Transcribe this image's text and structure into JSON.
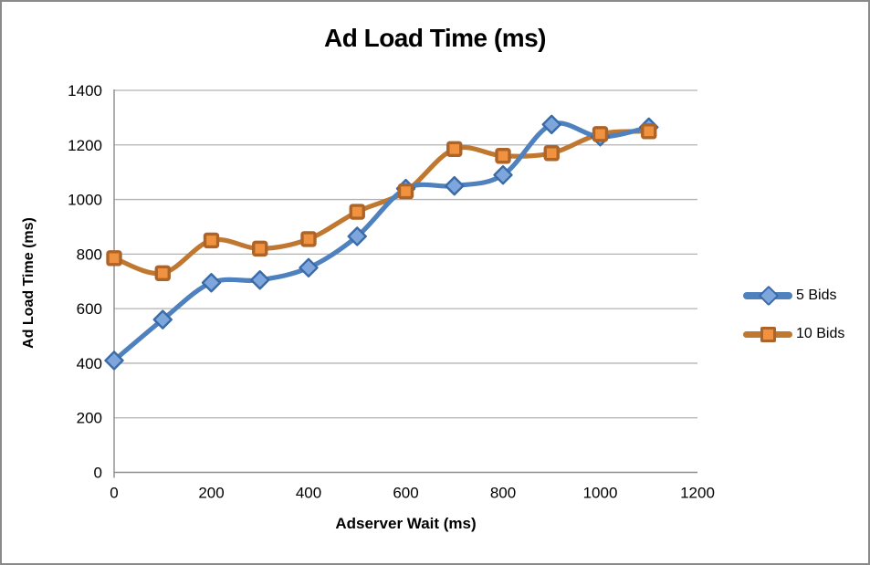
{
  "window": {
    "background": "#ffffff",
    "border_color": "#8a8a8a"
  },
  "chart_data": {
    "type": "line",
    "title": "Ad Load Time (ms)",
    "xlabel": "Adserver Wait (ms)",
    "ylabel": "Ad Load Time (ms)",
    "x": [
      0,
      100,
      200,
      300,
      400,
      500,
      600,
      700,
      800,
      900,
      1000,
      1100
    ],
    "series": [
      {
        "name": "5 Bids",
        "marker": "diamond",
        "line_color": "#4e81bd",
        "marker_fill": "#7da7dc",
        "marker_stroke": "#3a6aa8",
        "values": [
          410,
          560,
          695,
          705,
          750,
          865,
          1040,
          1050,
          1090,
          1275,
          1230,
          1265
        ]
      },
      {
        "name": "10 Bids",
        "marker": "square",
        "line_color": "#c0772f",
        "marker_fill": "#f0923f",
        "marker_stroke": "#ad6428",
        "values": [
          785,
          730,
          850,
          820,
          855,
          955,
          1030,
          1185,
          1160,
          1170,
          1240,
          1250
        ]
      }
    ],
    "xlim": [
      0,
      1200
    ],
    "ylim": [
      0,
      1400
    ],
    "x_ticks": [
      "0",
      "200",
      "400",
      "600",
      "800",
      "1000",
      "1200"
    ],
    "y_ticks": [
      "0",
      "200",
      "400",
      "600",
      "800",
      "1000",
      "1200",
      "1400"
    ],
    "grid": true,
    "smooth_lines": true,
    "legend_position": "right",
    "gridline_color": "#b3b3b3",
    "axis_color": "#8c8c8c",
    "tick_label_color": "#000000"
  }
}
